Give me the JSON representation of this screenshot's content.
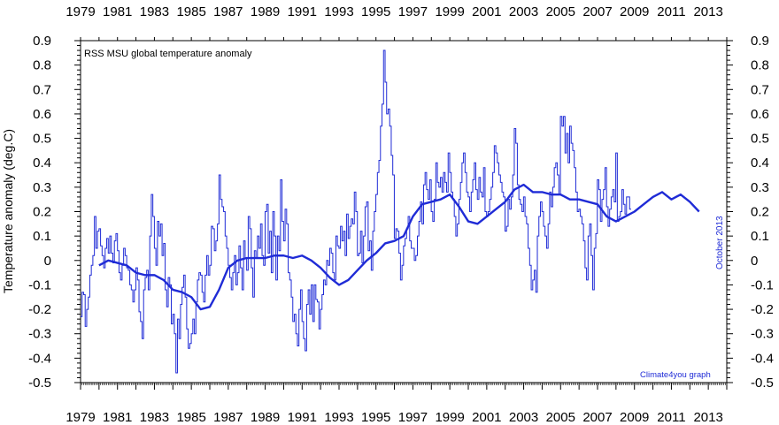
{
  "chart_data": {
    "type": "line",
    "title": "RSS MSU global temperature anomaly",
    "ylabel": "Temperature anomaly (deg.C)",
    "xlabel": "",
    "credit": "Climate4you graph",
    "date_note": "October 2013",
    "xlim": [
      1979,
      2014.0
    ],
    "ylim": [
      -0.5,
      0.9
    ],
    "x_tick_labels": [
      "1979",
      "1981",
      "1983",
      "1985",
      "1987",
      "1989",
      "1991",
      "1993",
      "1995",
      "1997",
      "1999",
      "2001",
      "2003",
      "2005",
      "2007",
      "2009",
      "2011",
      "2013"
    ],
    "y_tick_labels": [
      "0.9",
      "0.8",
      "0.7",
      "0.6",
      "0.5",
      "0.4",
      "0.3",
      "0.2",
      "0.1",
      "0",
      "-0.1",
      "-0.2",
      "-0.3",
      "-0.4",
      "-0.5"
    ],
    "colors": {
      "series": "#1f2bd6",
      "axes": "#000000"
    },
    "series": [
      {
        "kind": "monthly",
        "step_years": 0.0833,
        "x_start": 1979.0,
        "values": [
          -0.23,
          -0.13,
          -0.14,
          -0.27,
          -0.2,
          -0.15,
          -0.06,
          -0.02,
          0.02,
          0.18,
          0.05,
          0.12,
          0.13,
          0.06,
          0.02,
          -0.03,
          0.05,
          0.09,
          0.03,
          0.1,
          0.03,
          -0.01,
          0.08,
          0.11,
          0.04,
          -0.05,
          -0.08,
          -0.02,
          0.05,
          0.02,
          -0.03,
          -0.04,
          -0.1,
          -0.12,
          -0.17,
          -0.12,
          -0.03,
          -0.08,
          -0.21,
          -0.25,
          -0.32,
          -0.12,
          -0.07,
          -0.04,
          -0.12,
          0.1,
          0.27,
          0.18,
          0.05,
          -0.02,
          0.16,
          0.1,
          0.15,
          0.02,
          0.07,
          -0.12,
          -0.19,
          -0.07,
          -0.1,
          -0.26,
          -0.22,
          -0.3,
          -0.46,
          -0.24,
          -0.32,
          -0.18,
          -0.11,
          -0.06,
          -0.15,
          -0.28,
          -0.36,
          -0.34,
          -0.3,
          -0.24,
          -0.3,
          -0.17,
          -0.08,
          -0.05,
          -0.06,
          -0.13,
          -0.17,
          -0.06,
          0.02,
          -0.06,
          -0.02,
          0.14,
          0.13,
          0.04,
          0.08,
          0.15,
          0.35,
          0.25,
          0.22,
          0.2,
          0.1,
          0.05,
          -0.02,
          -0.07,
          -0.12,
          -0.05,
          0.02,
          -0.1,
          -0.05,
          0.06,
          -0.03,
          -0.12,
          0.08,
          0.01,
          -0.04,
          0.18,
          0.13,
          -0.03,
          -0.15,
          0.04,
          0.01,
          0.1,
          0.05,
          0.15,
          0.02,
          -0.02,
          0.2,
          0.23,
          0.03,
          0.12,
          -0.05,
          0.2,
          0.1,
          -0.08,
          0.1,
          0.04,
          0.33,
          0.16,
          0.08,
          0.21,
          0.15,
          -0.05,
          -0.08,
          -0.15,
          -0.25,
          -0.22,
          -0.3,
          -0.35,
          -0.2,
          -0.12,
          -0.25,
          -0.32,
          -0.37,
          -0.18,
          -0.12,
          -0.22,
          -0.1,
          -0.25,
          -0.1,
          -0.16,
          -0.17,
          -0.28,
          -0.2,
          -0.14,
          -0.08,
          -0.1,
          0.0,
          -0.02,
          0.05,
          0.03,
          -0.05,
          -0.08,
          0.1,
          0.06,
          0.05,
          0.14,
          0.08,
          0.12,
          0.02,
          0.19,
          0.09,
          0.14,
          0.17,
          0.15,
          0.28,
          0.2,
          0.02,
          0.03,
          0.12,
          -0.01,
          0.1,
          0.22,
          0.24,
          0.04,
          0.08,
          -0.04,
          0.12,
          0.2,
          0.27,
          0.36,
          0.41,
          0.55,
          0.64,
          0.86,
          0.73,
          0.6,
          0.62,
          0.55,
          0.43,
          0.35,
          0.09,
          0.13,
          0.12,
          0.03,
          -0.08,
          -0.02,
          0.06,
          0.09,
          0.13,
          0.18,
          0.08,
          0.05,
          0.05,
          0.0,
          0.02,
          0.1,
          0.16,
          0.24,
          0.15,
          0.31,
          0.36,
          0.29,
          0.25,
          0.33,
          0.2,
          0.16,
          0.25,
          0.4,
          0.32,
          0.3,
          0.34,
          0.28,
          0.36,
          0.32,
          0.28,
          0.44,
          0.36,
          0.28,
          0.25,
          0.18,
          0.1,
          0.15,
          0.25,
          0.32,
          0.4,
          0.44,
          0.36,
          0.28,
          0.26,
          0.2,
          0.28,
          0.33,
          0.4,
          0.29,
          0.25,
          0.34,
          0.28,
          0.26,
          0.38,
          0.2,
          0.18,
          0.2,
          0.25,
          0.3,
          0.36,
          0.47,
          0.44,
          0.4,
          0.35,
          0.32,
          0.28,
          0.26,
          0.12,
          0.14,
          0.25,
          0.21,
          0.26,
          0.35,
          0.54,
          0.48,
          0.31,
          0.25,
          0.23,
          0.2,
          0.26,
          0.18,
          0.15,
          0.05,
          -0.02,
          -0.12,
          -0.08,
          -0.04,
          -0.13,
          0.1,
          0.18,
          0.24,
          0.2,
          0.14,
          0.1,
          0.05,
          0.15,
          0.28,
          0.22,
          0.3,
          0.38,
          0.4,
          0.35,
          0.27,
          0.59,
          0.55,
          0.59,
          0.44,
          0.52,
          0.4,
          0.55,
          0.48,
          0.45,
          0.38,
          0.28,
          0.2,
          0.21,
          0.18,
          0.15,
          0.08,
          -0.03,
          -0.08,
          0.1,
          0.15,
          0.02,
          -0.12,
          0.05,
          0.11,
          0.33,
          0.29,
          0.16,
          0.25,
          0.29,
          0.38,
          0.22,
          0.14,
          0.21,
          0.26,
          0.29,
          0.24,
          0.44,
          0.16,
          0.18,
          0.2,
          0.29,
          0.23,
          0.19,
          0.26,
          0.26,
          0.21
        ]
      },
      {
        "kind": "running-mean",
        "points": [
          [
            1980.0,
            -0.02
          ],
          [
            1980.5,
            0.0
          ],
          [
            1981.0,
            -0.01
          ],
          [
            1981.5,
            -0.02
          ],
          [
            1982.0,
            -0.05
          ],
          [
            1982.5,
            -0.06
          ],
          [
            1983.0,
            -0.06
          ],
          [
            1983.5,
            -0.08
          ],
          [
            1984.0,
            -0.12
          ],
          [
            1984.5,
            -0.13
          ],
          [
            1985.0,
            -0.15
          ],
          [
            1985.5,
            -0.2
          ],
          [
            1986.0,
            -0.19
          ],
          [
            1986.5,
            -0.12
          ],
          [
            1987.0,
            -0.03
          ],
          [
            1987.5,
            0.0
          ],
          [
            1988.0,
            0.01
          ],
          [
            1988.5,
            0.01
          ],
          [
            1989.0,
            0.01
          ],
          [
            1989.5,
            0.02
          ],
          [
            1990.0,
            0.02
          ],
          [
            1990.5,
            0.01
          ],
          [
            1991.0,
            0.02
          ],
          [
            1991.5,
            0.0
          ],
          [
            1992.0,
            -0.03
          ],
          [
            1992.5,
            -0.07
          ],
          [
            1993.0,
            -0.1
          ],
          [
            1993.5,
            -0.08
          ],
          [
            1994.0,
            -0.04
          ],
          [
            1994.5,
            0.0
          ],
          [
            1995.0,
            0.03
          ],
          [
            1995.5,
            0.07
          ],
          [
            1996.0,
            0.08
          ],
          [
            1996.5,
            0.1
          ],
          [
            1997.0,
            0.18
          ],
          [
            1997.5,
            0.23
          ],
          [
            1998.0,
            0.24
          ],
          [
            1998.5,
            0.25
          ],
          [
            1999.0,
            0.27
          ],
          [
            1999.5,
            0.22
          ],
          [
            2000.0,
            0.16
          ],
          [
            2000.5,
            0.15
          ],
          [
            2001.0,
            0.18
          ],
          [
            2001.5,
            0.21
          ],
          [
            2002.0,
            0.24
          ],
          [
            2002.5,
            0.29
          ],
          [
            2003.0,
            0.31
          ],
          [
            2003.5,
            0.28
          ],
          [
            2004.0,
            0.28
          ],
          [
            2004.5,
            0.27
          ],
          [
            2005.0,
            0.27
          ],
          [
            2005.5,
            0.25
          ],
          [
            2006.0,
            0.25
          ],
          [
            2006.5,
            0.24
          ],
          [
            2007.0,
            0.23
          ],
          [
            2007.5,
            0.18
          ],
          [
            2008.0,
            0.16
          ],
          [
            2008.5,
            0.18
          ],
          [
            2009.0,
            0.2
          ],
          [
            2009.5,
            0.23
          ],
          [
            2010.0,
            0.26
          ],
          [
            2010.5,
            0.28
          ],
          [
            2011.0,
            0.25
          ],
          [
            2011.5,
            0.27
          ],
          [
            2012.0,
            0.24
          ],
          [
            2012.5,
            0.2
          ]
        ]
      }
    ]
  }
}
